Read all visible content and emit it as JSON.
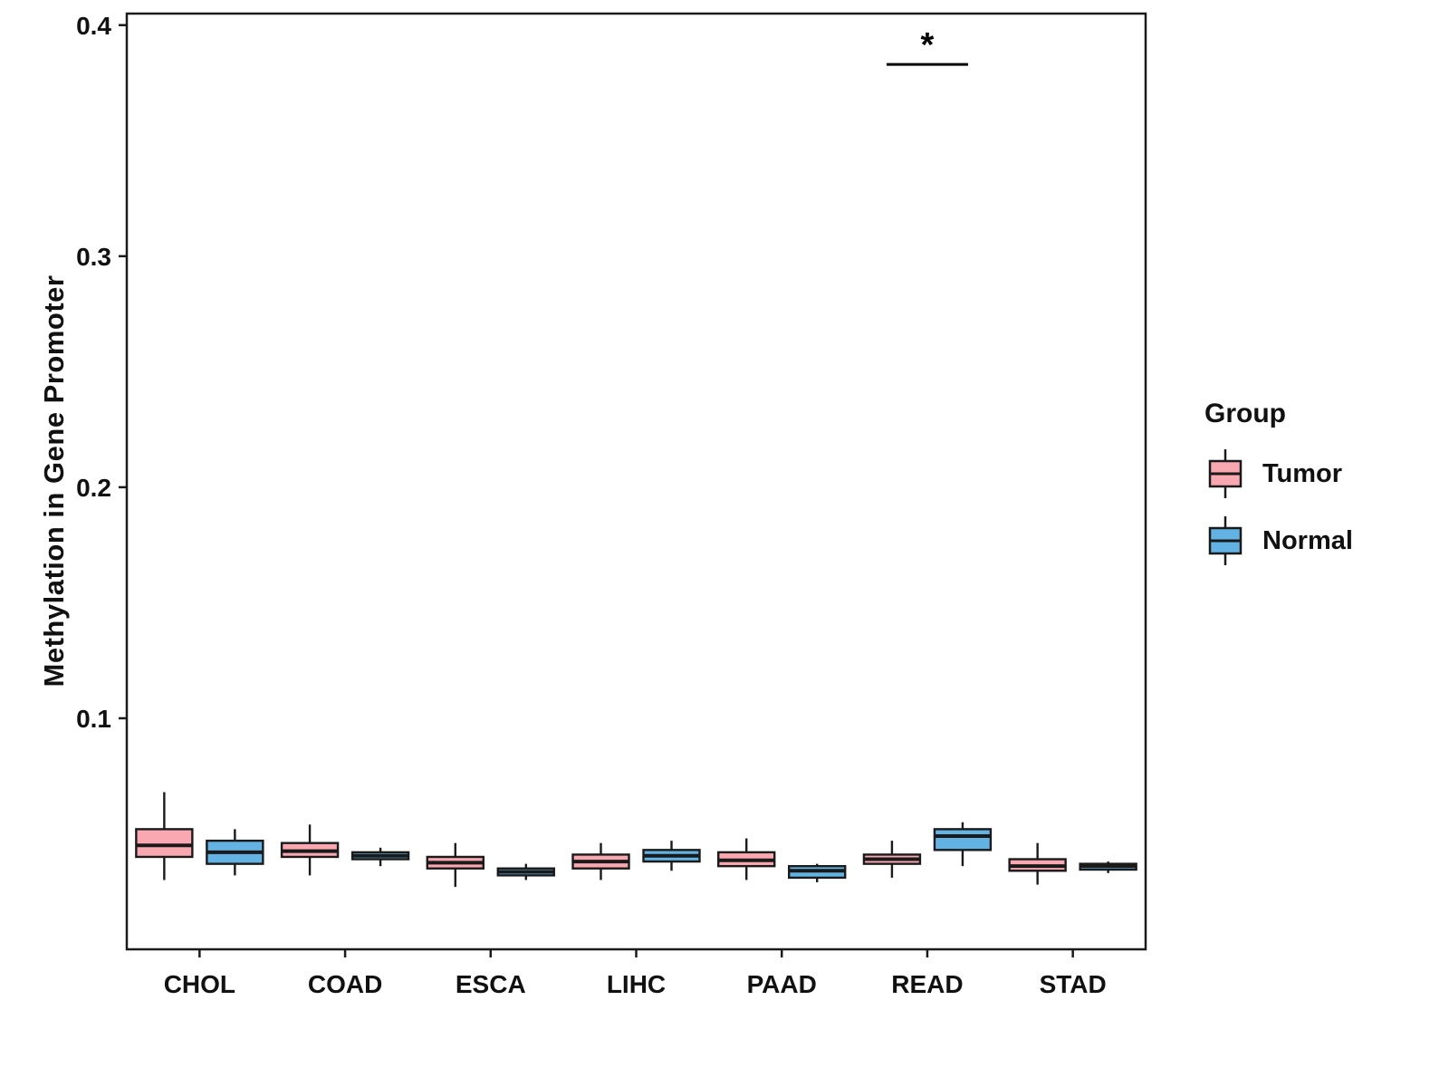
{
  "chart_data": {
    "type": "boxplot",
    "title": "",
    "xlabel": "",
    "ylabel": "Methylation in Gene Promoter",
    "ylim": [
      0,
      0.405
    ],
    "yticks": [
      0.1,
      0.2,
      0.3,
      0.4
    ],
    "grid": false,
    "legend_position": "right",
    "categories": [
      "CHOL",
      "COAD",
      "ESCA",
      "LIHC",
      "PAAD",
      "READ",
      "STAD"
    ],
    "legend": {
      "title": "Group"
    },
    "series": [
      {
        "name": "Tumor",
        "color": "#F9A7B0",
        "stats": [
          {
            "min": 0.03,
            "q1": 0.04,
            "median": 0.045,
            "q3": 0.052,
            "max": 0.068
          },
          {
            "min": 0.032,
            "q1": 0.04,
            "median": 0.0425,
            "q3": 0.046,
            "max": 0.054
          },
          {
            "min": 0.027,
            "q1": 0.035,
            "median": 0.0375,
            "q3": 0.04,
            "max": 0.046
          },
          {
            "min": 0.03,
            "q1": 0.035,
            "median": 0.038,
            "q3": 0.041,
            "max": 0.046
          },
          {
            "min": 0.03,
            "q1": 0.036,
            "median": 0.0385,
            "q3": 0.042,
            "max": 0.048
          },
          {
            "min": 0.031,
            "q1": 0.037,
            "median": 0.039,
            "q3": 0.041,
            "max": 0.047
          },
          {
            "min": 0.028,
            "q1": 0.034,
            "median": 0.036,
            "q3": 0.039,
            "max": 0.046
          }
        ]
      },
      {
        "name": "Normal",
        "color": "#63B2E4",
        "stats": [
          {
            "min": 0.032,
            "q1": 0.037,
            "median": 0.042,
            "q3": 0.047,
            "max": 0.052
          },
          {
            "min": 0.036,
            "q1": 0.039,
            "median": 0.0405,
            "q3": 0.042,
            "max": 0.044
          },
          {
            "min": 0.03,
            "q1": 0.032,
            "median": 0.0335,
            "q3": 0.035,
            "max": 0.037
          },
          {
            "min": 0.034,
            "q1": 0.038,
            "median": 0.0405,
            "q3": 0.043,
            "max": 0.047
          },
          {
            "min": 0.029,
            "q1": 0.031,
            "median": 0.034,
            "q3": 0.036,
            "max": 0.037
          },
          {
            "min": 0.036,
            "q1": 0.043,
            "median": 0.049,
            "q3": 0.052,
            "max": 0.055
          },
          {
            "min": 0.033,
            "q1": 0.0345,
            "median": 0.036,
            "q3": 0.037,
            "max": 0.038
          }
        ]
      }
    ],
    "annotations": [
      {
        "label": "*",
        "category": "READ",
        "y": 0.383
      }
    ]
  }
}
